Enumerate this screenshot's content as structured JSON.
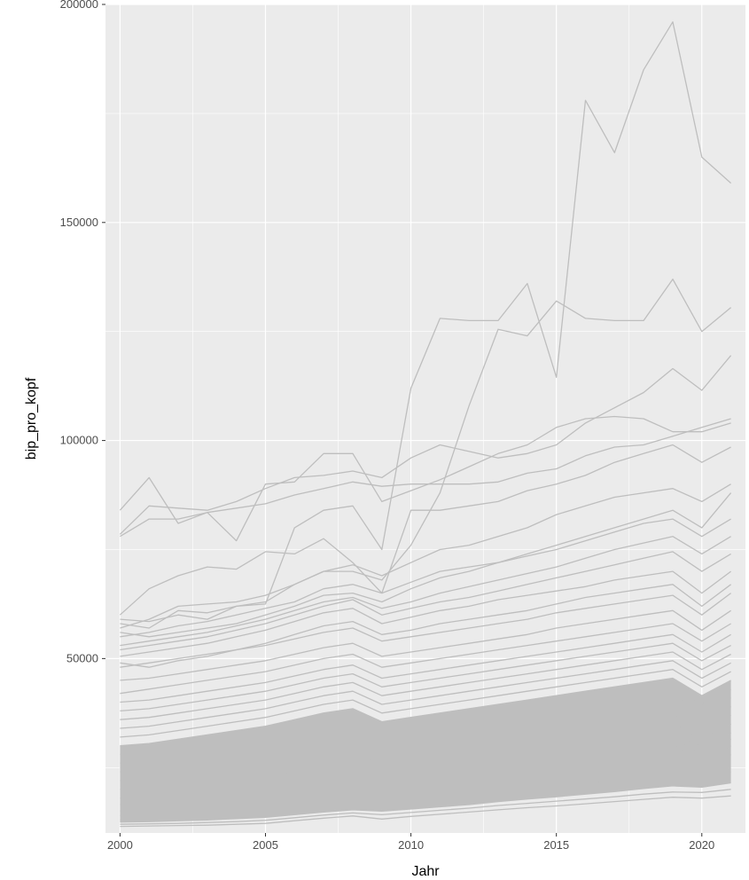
{
  "chart_data": {
    "type": "line",
    "title": "",
    "xlabel": "Jahr",
    "ylabel": "bip_pro_kopf",
    "xlim": [
      1999.5,
      2021.5
    ],
    "ylim": [
      10000,
      200000
    ],
    "x_ticks": [
      2000,
      2005,
      2010,
      2015,
      2020
    ],
    "y_ticks": [
      50000,
      100000,
      150000,
      200000
    ],
    "grid": true,
    "legend": "none",
    "colors": {
      "panel": "#ebebeb",
      "grid": "#ffffff",
      "line": "#bebebe"
    },
    "x": [
      2000,
      2001,
      2002,
      2003,
      2004,
      2005,
      2006,
      2007,
      2008,
      2009,
      2010,
      2011,
      2012,
      2013,
      2014,
      2015,
      2016,
      2017,
      2018,
      2019,
      2020,
      2021
    ],
    "series": [
      {
        "values": [
          59000,
          58500,
          60000,
          59000,
          62000,
          62500,
          80000,
          84000,
          85000,
          75000,
          112000,
          128000,
          127500,
          127500,
          136000,
          114500,
          178000,
          166000,
          185000,
          196000,
          165000,
          159000
        ]
      },
      {
        "values": [
          58000,
          57000,
          61000,
          60500,
          62000,
          63000,
          67000,
          70000,
          70000,
          68000,
          76000,
          88000,
          108000,
          125500,
          124000,
          132000,
          128000,
          127500,
          127500,
          137000,
          125000,
          130500
        ]
      },
      {
        "values": [
          78500,
          85000,
          84500,
          84000,
          86000,
          89000,
          91500,
          92000,
          93000,
          91500,
          96000,
          99000,
          97500,
          96000,
          97000,
          99000,
          104000,
          107500,
          111000,
          116500,
          111500,
          119500
        ]
      },
      {
        "values": [
          84000,
          91500,
          81000,
          83500,
          77000,
          90000,
          90500,
          97000,
          97000,
          86000,
          88500,
          91000,
          94000,
          97000,
          99000,
          103000,
          105000,
          105500,
          105000,
          102000,
          102000,
          104000
        ]
      },
      {
        "values": [
          78000,
          82000,
          82000,
          83500,
          84500,
          85500,
          87500,
          89000,
          90500,
          89500,
          90000,
          90000,
          90000,
          90500,
          92500,
          93500,
          96500,
          98500,
          99000,
          101000,
          103000,
          105000
        ]
      },
      {
        "values": [
          60000,
          66000,
          69000,
          71000,
          70500,
          74500,
          74000,
          77500,
          72000,
          65000,
          84000,
          84000,
          85000,
          86000,
          88500,
          90000,
          92000,
          95000,
          97000,
          99000,
          95000,
          98500
        ]
      },
      {
        "values": [
          57000,
          59000,
          62000,
          62500,
          63000,
          64500,
          67000,
          70000,
          71500,
          69000,
          72000,
          75000,
          76000,
          78000,
          80000,
          83000,
          85000,
          87000,
          88000,
          89000,
          86000,
          90000
        ]
      },
      {
        "values": [
          56000,
          55000,
          56000,
          57000,
          58000,
          60000,
          62000,
          64500,
          65000,
          63000,
          66000,
          68500,
          70000,
          72000,
          74000,
          76000,
          78000,
          80000,
          82000,
          84000,
          80000,
          88000
        ]
      },
      {
        "values": [
          55000,
          56000,
          57500,
          58500,
          60000,
          61500,
          63000,
          66000,
          67000,
          65000,
          67500,
          70000,
          71000,
          72000,
          73500,
          75000,
          77000,
          79000,
          81000,
          82000,
          78000,
          82000
        ]
      },
      {
        "values": [
          53000,
          54000,
          55000,
          56000,
          57500,
          59000,
          61000,
          63000,
          64000,
          61500,
          63000,
          65000,
          66500,
          68000,
          69500,
          71000,
          73000,
          75000,
          76500,
          78000,
          74000,
          78000
        ]
      },
      {
        "values": [
          52000,
          53000,
          54000,
          55000,
          56500,
          58000,
          60000,
          62000,
          63500,
          60000,
          61500,
          63000,
          64000,
          65500,
          67000,
          68500,
          70000,
          71500,
          73000,
          74500,
          70000,
          74000
        ]
      },
      {
        "values": [
          50500,
          51500,
          52500,
          53500,
          55000,
          56500,
          58500,
          60500,
          61500,
          58000,
          59500,
          61000,
          62000,
          63500,
          64500,
          65500,
          66500,
          68000,
          69000,
          70000,
          65000,
          70000
        ]
      },
      {
        "values": [
          49000,
          48000,
          49500,
          50500,
          52000,
          53500,
          55500,
          57500,
          58500,
          55500,
          56500,
          58000,
          59000,
          60000,
          61000,
          62500,
          64000,
          65000,
          66000,
          67000,
          62000,
          67000
        ]
      },
      {
        "values": [
          48000,
          49000,
          50000,
          51000,
          52000,
          53000,
          54500,
          56000,
          57000,
          54000,
          55000,
          56000,
          57000,
          58000,
          59000,
          60500,
          61500,
          62500,
          63500,
          64500,
          60000,
          65000
        ]
      },
      {
        "values": [
          45000,
          45500,
          46500,
          47500,
          48500,
          49500,
          51000,
          52500,
          53500,
          50500,
          51500,
          52500,
          53500,
          54500,
          55500,
          57000,
          58000,
          59000,
          60000,
          61000,
          56500,
          61000
        ]
      },
      {
        "values": [
          42000,
          43000,
          44000,
          45000,
          46000,
          47000,
          48500,
          50000,
          51000,
          48000,
          49000,
          50000,
          51000,
          52000,
          53000,
          54000,
          55000,
          56000,
          57000,
          58000,
          54000,
          58000
        ]
      },
      {
        "values": [
          40000,
          40500,
          41500,
          42500,
          43500,
          44500,
          46000,
          47500,
          48500,
          45500,
          46500,
          47500,
          48500,
          49500,
          50500,
          51500,
          52500,
          53500,
          54500,
          55500,
          51500,
          55500
        ]
      },
      {
        "values": [
          38000,
          38500,
          39500,
          40500,
          41500,
          42500,
          44000,
          45500,
          46500,
          43500,
          44500,
          45500,
          46500,
          47500,
          48500,
          49500,
          50500,
          51500,
          52500,
          53500,
          49500,
          53000
        ]
      },
      {
        "values": [
          36000,
          36500,
          37500,
          38500,
          39500,
          40500,
          42000,
          43500,
          44500,
          41500,
          42500,
          43500,
          44500,
          45500,
          46500,
          47500,
          48500,
          49500,
          50500,
          51500,
          47500,
          51000
        ]
      },
      {
        "values": [
          34000,
          34500,
          35500,
          36500,
          37500,
          38500,
          40000,
          41500,
          42500,
          39500,
          40500,
          41500,
          42500,
          43500,
          44500,
          45500,
          46500,
          47500,
          48500,
          49500,
          45500,
          49000
        ]
      },
      {
        "values": [
          32000,
          32500,
          33500,
          34500,
          35500,
          36500,
          38000,
          39500,
          40500,
          37500,
          38500,
          39500,
          40500,
          41500,
          42500,
          43500,
          44500,
          45500,
          46500,
          47500,
          43500,
          47000
        ]
      },
      {
        "values": [
          30000,
          30500,
          31500,
          32500,
          33500,
          34500,
          36000,
          37500,
          38500,
          35500,
          36500,
          37500,
          38500,
          39500,
          40500,
          41500,
          42500,
          43500,
          44500,
          45500,
          41500,
          45000
        ]
      },
      {
        "values": [
          28000,
          28500,
          29500,
          30500,
          31500,
          32500,
          34000,
          35500,
          36500,
          33500,
          34500,
          35500,
          36500,
          37500,
          38500,
          39500,
          40500,
          41500,
          42500,
          43500,
          39500,
          43000
        ]
      },
      {
        "values": [
          26000,
          26500,
          27500,
          28500,
          29500,
          30500,
          32000,
          33500,
          34500,
          31500,
          32500,
          33500,
          34500,
          35500,
          36500,
          37500,
          38500,
          39500,
          40500,
          41500,
          37500,
          41000
        ]
      },
      {
        "values": [
          24000,
          24500,
          25500,
          26500,
          27500,
          28500,
          30000,
          31500,
          32500,
          29500,
          30500,
          31500,
          32500,
          33500,
          34500,
          35500,
          36500,
          37500,
          38500,
          39500,
          35500,
          39000
        ]
      },
      {
        "values": [
          22000,
          22500,
          23500,
          24500,
          25500,
          26500,
          28000,
          29500,
          30500,
          27500,
          28500,
          29500,
          30500,
          31500,
          32500,
          33500,
          34500,
          35500,
          36500,
          37500,
          33500,
          37000
        ]
      },
      {
        "values": [
          20000,
          20500,
          21500,
          22500,
          23500,
          24500,
          26000,
          27500,
          28500,
          25500,
          26500,
          27500,
          28500,
          29500,
          30500,
          31500,
          32500,
          33500,
          34500,
          35500,
          31500,
          35000
        ]
      },
      {
        "values": [
          18000,
          18500,
          19500,
          20500,
          21500,
          22500,
          24000,
          25500,
          26500,
          23500,
          24500,
          25500,
          26500,
          27500,
          28500,
          29500,
          30500,
          31500,
          32500,
          33500,
          29500,
          33000
        ]
      },
      {
        "values": [
          16500,
          17000,
          18000,
          19000,
          20000,
          21000,
          22500,
          24000,
          25000,
          22000,
          23000,
          24000,
          25000,
          26000,
          27000,
          28000,
          29000,
          30000,
          31000,
          32000,
          28000,
          31500
        ]
      },
      {
        "values": [
          15000,
          15500,
          16500,
          17500,
          18500,
          19500,
          21000,
          22000,
          23000,
          20500,
          21500,
          22500,
          23500,
          24500,
          25500,
          26500,
          27500,
          28500,
          29500,
          30500,
          26500,
          30000
        ]
      },
      {
        "values": [
          14000,
          14500,
          15000,
          15500,
          16000,
          16500,
          17500,
          18500,
          19000,
          18000,
          19000,
          20000,
          21000,
          22000,
          23000,
          24000,
          25000,
          26000,
          27000,
          28000,
          25000,
          28000
        ]
      },
      {
        "values": [
          13000,
          13200,
          13500,
          14000,
          14500,
          15000,
          15800,
          16500,
          17000,
          16500,
          17000,
          17800,
          18500,
          19200,
          20000,
          20500,
          21200,
          22000,
          22800,
          23500,
          22500,
          24000
        ]
      },
      {
        "values": [
          12500,
          12600,
          12800,
          13000,
          13300,
          13600,
          14200,
          14800,
          15300,
          15000,
          15500,
          16000,
          16500,
          17200,
          17800,
          18300,
          18900,
          19500,
          20200,
          20800,
          20500,
          21500
        ]
      },
      {
        "values": [
          12000,
          12100,
          12200,
          12400,
          12600,
          12900,
          13500,
          14100,
          14600,
          14200,
          14700,
          15200,
          15700,
          16300,
          16800,
          17300,
          17800,
          18300,
          18900,
          19400,
          19300,
          20000
        ]
      },
      {
        "values": [
          11500,
          11600,
          11700,
          11800,
          12000,
          12200,
          12800,
          13400,
          13900,
          13200,
          13800,
          14300,
          14800,
          15300,
          15800,
          16200,
          16700,
          17200,
          17700,
          18200,
          18000,
          18500
        ]
      }
    ]
  }
}
